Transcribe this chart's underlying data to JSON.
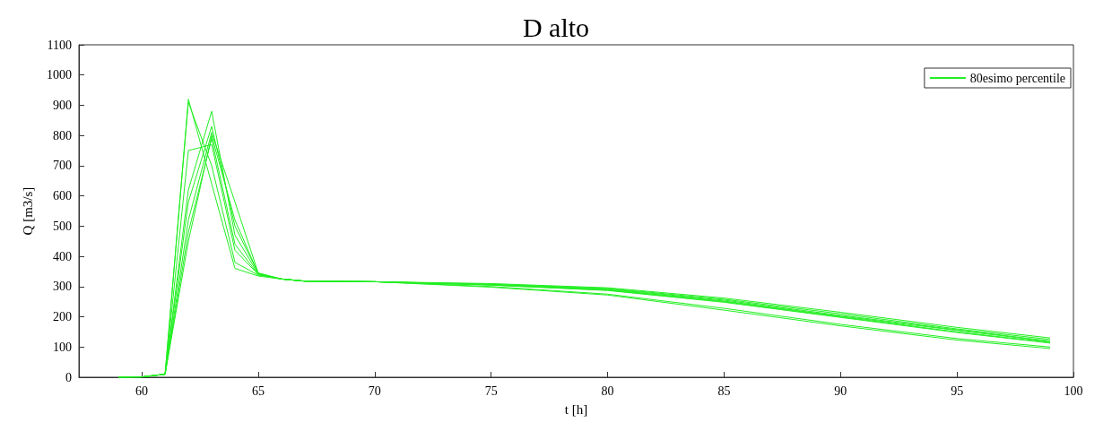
{
  "chart_data": {
    "type": "line",
    "title": "D alto",
    "xlabel": "t [h]",
    "ylabel": "Q [m3/s]",
    "x": [
      59,
      60,
      61,
      62,
      63,
      64,
      65,
      66,
      67,
      70,
      75,
      80,
      85,
      90,
      95,
      99
    ],
    "series": [
      {
        "name": "80esimo percentile",
        "color": "#22ee22",
        "values": [
          0,
          1,
          10,
          920,
          640,
          360,
          335,
          325,
          318,
          316,
          310,
          296,
          262,
          215,
          165,
          130
        ]
      },
      {
        "color": "#22ee22",
        "values": [
          0,
          1,
          10,
          910,
          700,
          380,
          338,
          325,
          318,
          316,
          308,
          294,
          258,
          210,
          160,
          125
        ]
      },
      {
        "color": "#22ee22",
        "values": [
          0,
          1,
          10,
          750,
          770,
          420,
          340,
          325,
          318,
          316,
          307,
          292,
          255,
          205,
          157,
          120
        ]
      },
      {
        "color": "#22ee22",
        "values": [
          0,
          1,
          10,
          620,
          880,
          470,
          342,
          325,
          318,
          316,
          306,
          290,
          252,
          202,
          155,
          118
        ]
      },
      {
        "color": "#22ee22",
        "values": [
          0,
          1,
          10,
          580,
          830,
          500,
          344,
          325,
          318,
          316,
          305,
          288,
          250,
          200,
          150,
          115
        ]
      },
      {
        "color": "#22ee22",
        "values": [
          0,
          1,
          10,
          520,
          810,
          580,
          345,
          325,
          318,
          316,
          305,
          287,
          248,
          198,
          148,
          113
        ]
      },
      {
        "color": "#22ee22",
        "values": [
          0,
          1,
          10,
          480,
          790,
          440,
          340,
          325,
          318,
          316,
          300,
          275,
          228,
          175,
          128,
          100
        ]
      },
      {
        "color": "#22ee22",
        "values": [
          0,
          1,
          10,
          450,
          800,
          520,
          343,
          325,
          318,
          316,
          298,
          272,
          222,
          170,
          123,
          95
        ]
      }
    ],
    "xlim": [
      57.3,
      100
    ],
    "xticks": [
      60,
      65,
      70,
      75,
      80,
      85,
      90,
      95,
      100
    ],
    "ylim": [
      0,
      1100
    ],
    "yticks": [
      0,
      100,
      200,
      300,
      400,
      500,
      600,
      700,
      800,
      900,
      1000,
      1100
    ],
    "grid": false,
    "legend": "top right",
    "marker": "none",
    "line_style": "solid"
  }
}
